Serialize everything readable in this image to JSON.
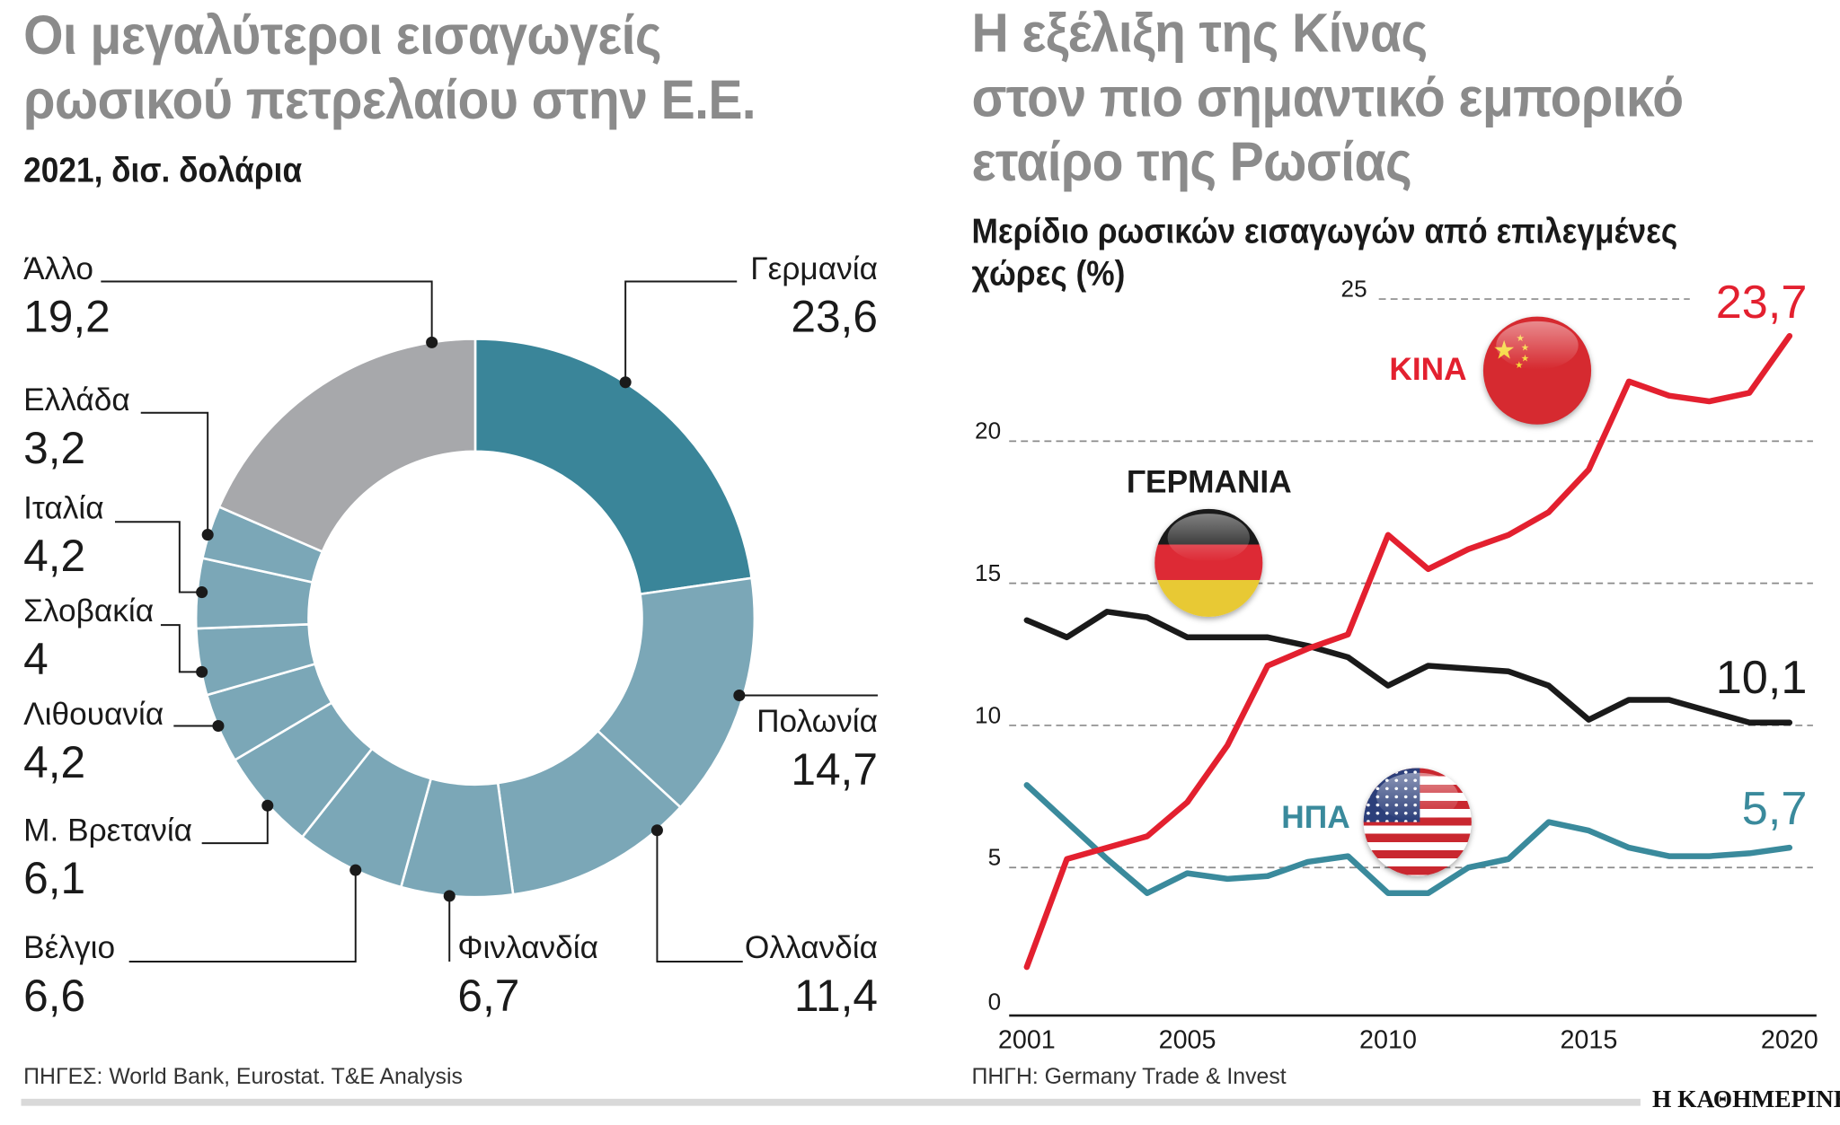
{
  "left": {
    "title_line1": "Οι μεγαλύτεροι εισαγωγείς",
    "title_line2": "ρωσικού πετρελαίου στην Ε.Ε.",
    "subtitle": "2021, δισ. δολάρια",
    "source": "ΠΗΓΕΣ: World Bank, Eurostat. T&E Analysis"
  },
  "right": {
    "title_line1": "Η εξέλιξη της Κίνας",
    "title_line2": "στον πιο σημαντικό εμπορικό",
    "title_line3": "εταίρο της Ρωσίας",
    "subtitle_line1": "Μερίδιο ρωσικών εισαγωγών από επιλεγμένες",
    "subtitle_line2": "χώρες (%)",
    "source": "ΠΗΓΗ: Germany Trade & Invest"
  },
  "logo": "Η ΚΑΘΗΜΕΡΙΝΗ",
  "chart_data": [
    {
      "type": "pie",
      "donut": true,
      "title": "Οι μεγαλύτεροι εισαγωγείς ρωσικού πετρελαίου στην Ε.Ε.",
      "subtitle": "2021, δισ. δολάρια",
      "slices": [
        {
          "label": "Γερμανία",
          "value": 23.6,
          "value_label": "23,6",
          "color": "#3a8599"
        },
        {
          "label": "Πολωνία",
          "value": 14.7,
          "value_label": "14,7",
          "color": "#7ba7b7"
        },
        {
          "label": "Ολλανδία",
          "value": 11.4,
          "value_label": "11,4",
          "color": "#7ba7b7"
        },
        {
          "label": "Φινλανδία",
          "value": 6.7,
          "value_label": "6,7",
          "color": "#7ba7b7"
        },
        {
          "label": "Βέλγιο",
          "value": 6.6,
          "value_label": "6,6",
          "color": "#7ba7b7"
        },
        {
          "label": "Μ. Βρετανία",
          "value": 6.1,
          "value_label": "6,1",
          "color": "#7ba7b7"
        },
        {
          "label": "Λιθουανία",
          "value": 4.2,
          "value_label": "4,2",
          "color": "#7ba7b7"
        },
        {
          "label": "Σλοβακία",
          "value": 4,
          "value_label": "4",
          "color": "#7ba7b7"
        },
        {
          "label": "Ιταλία",
          "value": 4.2,
          "value_label": "4,2",
          "color": "#7ba7b7"
        },
        {
          "label": "Ελλάδα",
          "value": 3.2,
          "value_label": "3,2",
          "color": "#7ba7b7"
        },
        {
          "label": "Άλλο",
          "value": 19.2,
          "value_label": "19,2",
          "color": "#a7a8ab"
        }
      ]
    },
    {
      "type": "line",
      "title": "Η εξέλιξη της Κίνας στον πιο σημαντικό εμπορικό εταίρο της Ρωσίας",
      "subtitle": "Μερίδιο ρωσικών εισαγωγών από επιλεγμένες χώρες (%)",
      "x": [
        2001,
        2002,
        2003,
        2004,
        2005,
        2006,
        2007,
        2008,
        2009,
        2010,
        2011,
        2012,
        2013,
        2014,
        2015,
        2016,
        2017,
        2018,
        2019,
        2020
      ],
      "x_ticks": [
        "2001",
        "2005",
        "2010",
        "2015",
        "2020"
      ],
      "y_ticks": [
        "0",
        "5",
        "10",
        "15",
        "20",
        "25"
      ],
      "ylim": [
        0,
        25
      ],
      "grid": "horizontal dashed",
      "series": [
        {
          "name": "ΚΙΝΑ",
          "color": "#e3202f",
          "end_label": "23,7",
          "values": [
            1.5,
            5.3,
            5.7,
            6.1,
            7.3,
            9.3,
            12.1,
            12.7,
            13.2,
            16.7,
            15.5,
            16.2,
            16.7,
            17.5,
            19.0,
            22.1,
            21.6,
            21.4,
            21.7,
            23.7
          ]
        },
        {
          "name": "ΓΕΡΜΑΝΙΑ",
          "color": "#1a1a1a",
          "end_label": "10,1",
          "values": [
            13.7,
            13.1,
            14.0,
            13.8,
            13.1,
            13.1,
            13.1,
            12.8,
            12.4,
            11.4,
            12.1,
            12.0,
            11.9,
            11.4,
            10.2,
            10.9,
            10.9,
            10.5,
            10.1,
            10.1
          ]
        },
        {
          "name": "ΗΠΑ",
          "color": "#3a8a9c",
          "end_label": "5,7",
          "values": [
            7.9,
            6.6,
            5.3,
            4.1,
            4.8,
            4.6,
            4.7,
            5.2,
            5.4,
            4.1,
            4.1,
            5.0,
            5.3,
            6.6,
            6.3,
            5.7,
            5.4,
            5.4,
            5.5,
            5.7
          ]
        }
      ]
    }
  ]
}
